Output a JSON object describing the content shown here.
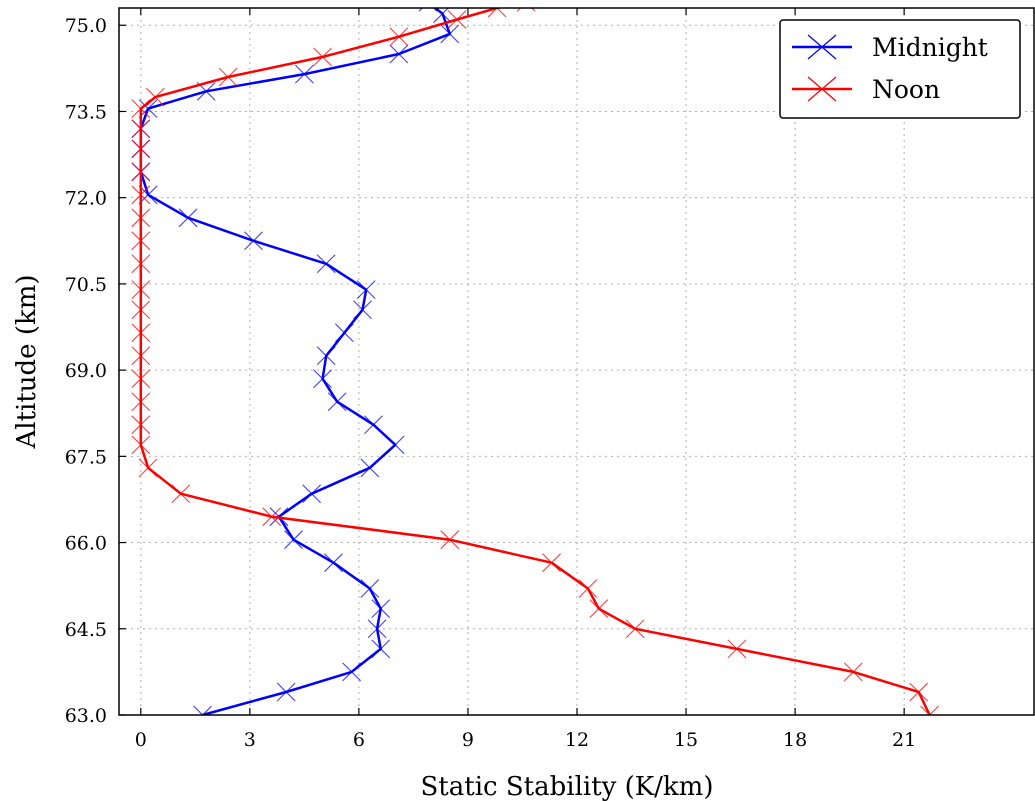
{
  "chart_data": {
    "type": "line",
    "title": "",
    "xlabel": "Static Stability (K/km)",
    "ylabel": "Altitude (km)",
    "xlim": [
      -0.6,
      24.6
    ],
    "ylim": [
      63.0,
      75.3
    ],
    "xticks": [
      0,
      3,
      6,
      9,
      12,
      15,
      18,
      21
    ],
    "xtick_labels": [
      "0",
      "3",
      "6",
      "9",
      "12",
      "15",
      "18",
      "21"
    ],
    "yticks": [
      63.0,
      64.5,
      66.0,
      67.5,
      69.0,
      70.5,
      72.0,
      73.5,
      75.0
    ],
    "ytick_labels": [
      "63.0",
      "64.5",
      "66.0",
      "67.5",
      "69.0",
      "70.5",
      "72.0",
      "73.5",
      "75.0"
    ],
    "grid": true,
    "legend_position": "top-right",
    "marker": "x",
    "series": [
      {
        "name": "Midnight",
        "color": "#0000ff",
        "points": [
          [
            1.7,
            63.0
          ],
          [
            4.0,
            63.4
          ],
          [
            5.8,
            63.75
          ],
          [
            6.6,
            64.15
          ],
          [
            6.5,
            64.5
          ],
          [
            6.6,
            64.85
          ],
          [
            6.3,
            65.2
          ],
          [
            5.3,
            65.65
          ],
          [
            4.2,
            66.05
          ],
          [
            3.8,
            66.45
          ],
          [
            4.7,
            66.85
          ],
          [
            6.3,
            67.3
          ],
          [
            7.0,
            67.7
          ],
          [
            6.4,
            68.05
          ],
          [
            5.4,
            68.45
          ],
          [
            5.0,
            68.85
          ],
          [
            5.1,
            69.25
          ],
          [
            5.6,
            69.65
          ],
          [
            6.1,
            70.05
          ],
          [
            6.2,
            70.4
          ],
          [
            5.1,
            70.85
          ],
          [
            3.1,
            71.25
          ],
          [
            1.3,
            71.65
          ],
          [
            0.2,
            72.05
          ],
          [
            0.0,
            72.45
          ],
          [
            0.0,
            72.85
          ],
          [
            0.0,
            73.2
          ],
          [
            0.2,
            73.55
          ],
          [
            1.8,
            73.85
          ],
          [
            4.5,
            74.15
          ],
          [
            7.1,
            74.5
          ],
          [
            8.5,
            74.85
          ],
          [
            8.3,
            75.2
          ],
          [
            7.9,
            75.4
          ]
        ]
      },
      {
        "name": "Noon",
        "color": "#ff0000",
        "points": [
          [
            21.7,
            63.0
          ],
          [
            21.4,
            63.4
          ],
          [
            19.6,
            63.75
          ],
          [
            16.4,
            64.15
          ],
          [
            13.6,
            64.5
          ],
          [
            12.6,
            64.85
          ],
          [
            12.3,
            65.2
          ],
          [
            11.3,
            65.65
          ],
          [
            8.5,
            66.05
          ],
          [
            3.6,
            66.45
          ],
          [
            1.1,
            66.85
          ],
          [
            0.2,
            67.3
          ],
          [
            0.0,
            67.7
          ],
          [
            0.0,
            68.05
          ],
          [
            0.0,
            68.45
          ],
          [
            0.0,
            68.85
          ],
          [
            0.0,
            69.25
          ],
          [
            0.0,
            69.65
          ],
          [
            0.0,
            70.05
          ],
          [
            0.0,
            70.4
          ],
          [
            0.0,
            70.85
          ],
          [
            0.0,
            71.25
          ],
          [
            0.0,
            71.65
          ],
          [
            0.0,
            72.05
          ],
          [
            0.0,
            72.45
          ],
          [
            0.0,
            72.85
          ],
          [
            0.0,
            73.2
          ],
          [
            0.0,
            73.55
          ],
          [
            0.4,
            73.75
          ],
          [
            2.4,
            74.1
          ],
          [
            5.0,
            74.45
          ],
          [
            7.1,
            74.8
          ],
          [
            8.7,
            75.1
          ],
          [
            9.8,
            75.3
          ],
          [
            10.6,
            75.4
          ]
        ]
      }
    ]
  }
}
